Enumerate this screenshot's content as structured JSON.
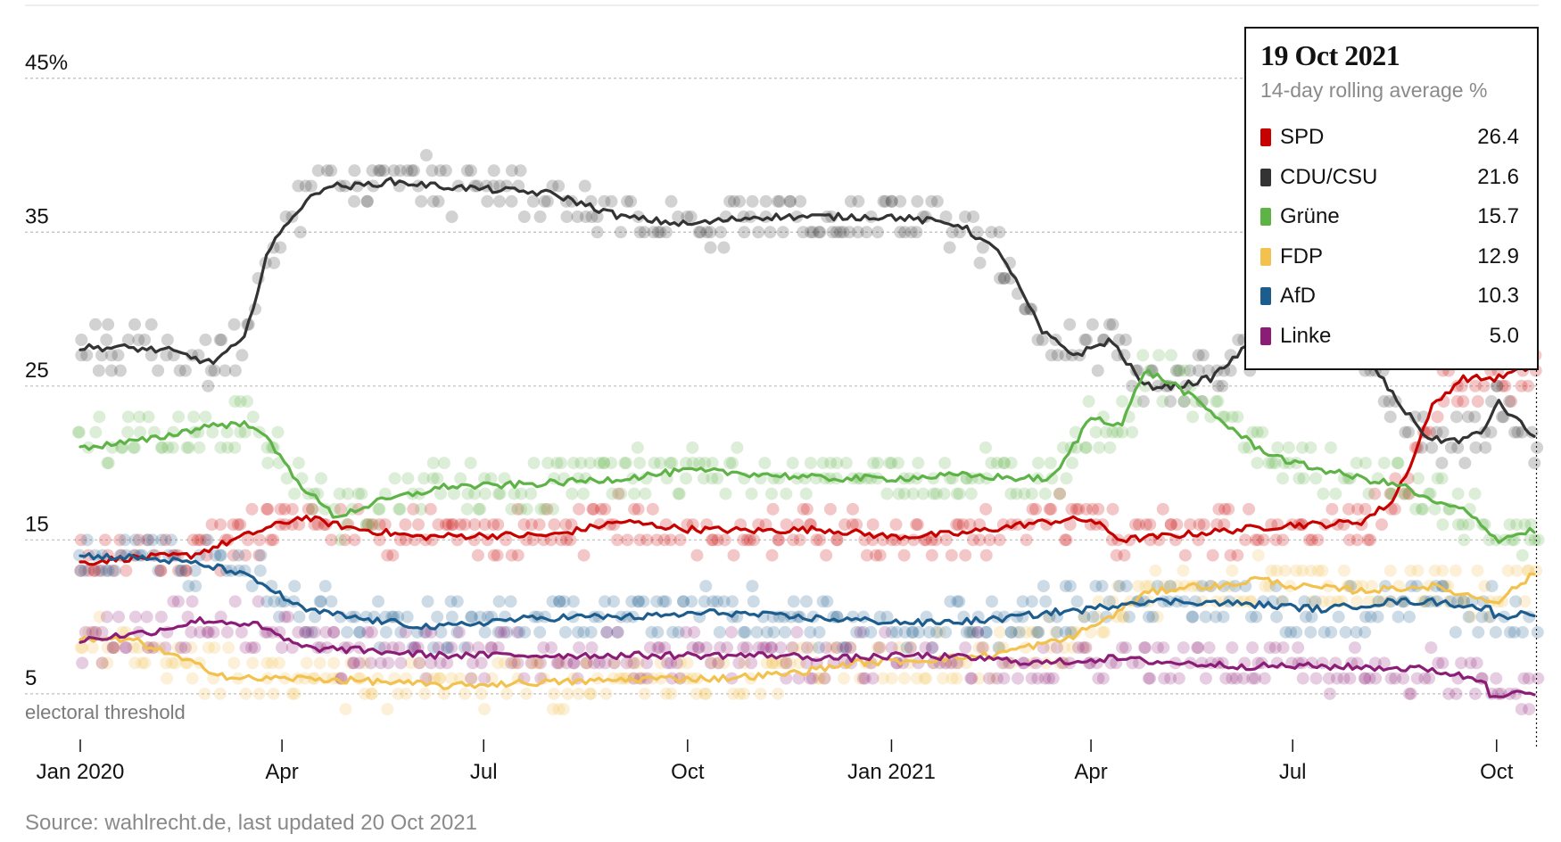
{
  "chart_data": {
    "type": "line",
    "title": "",
    "subtitle": "",
    "xlabel": "",
    "ylabel": "",
    "x_range": [
      "2020-01-01",
      "2021-10-20"
    ],
    "ylim": [
      -1.5,
      48
    ],
    "y_ticks": [
      {
        "value": 45,
        "label": "45%"
      },
      {
        "value": 35,
        "label": "35"
      },
      {
        "value": 25,
        "label": "25"
      },
      {
        "value": 15,
        "label": "15"
      },
      {
        "value": 5,
        "label": "5"
      }
    ],
    "x_ticks": [
      {
        "date": "2020-01-01",
        "label": "Jan 2020"
      },
      {
        "date": "2020-04-01",
        "label": "Apr"
      },
      {
        "date": "2020-07-01",
        "label": "Jul"
      },
      {
        "date": "2020-10-01",
        "label": "Oct"
      },
      {
        "date": "2021-01-01",
        "label": "Jan 2021"
      },
      {
        "date": "2021-04-01",
        "label": "Apr"
      },
      {
        "date": "2021-07-01",
        "label": "Jul"
      },
      {
        "date": "2021-10-01",
        "label": "Oct"
      }
    ],
    "threshold": {
      "value": 5,
      "label": "electoral threshold"
    },
    "grid": true,
    "marker_date": "2021-10-19",
    "series": [
      {
        "name": "SPD",
        "color": "#c70000",
        "x": [
          "2020-01-01",
          "2020-01-20",
          "2020-02-20",
          "2020-03-20",
          "2020-04-10",
          "2020-05-01",
          "2020-06-01",
          "2020-07-01",
          "2020-08-01",
          "2020-09-01",
          "2020-10-01",
          "2020-11-01",
          "2020-12-01",
          "2021-01-01",
          "2021-02-01",
          "2021-03-01",
          "2021-03-20",
          "2021-04-01",
          "2021-04-15",
          "2021-05-01",
          "2021-06-01",
          "2021-07-01",
          "2021-07-15",
          "2021-08-01",
          "2021-08-15",
          "2021-08-25",
          "2021-09-01",
          "2021-09-15",
          "2021-10-01",
          "2021-10-19"
        ],
        "y": [
          13.5,
          13.8,
          14.0,
          15.5,
          16.5,
          15.8,
          15.2,
          15.3,
          15.3,
          16.2,
          15.7,
          15.6,
          15.7,
          15.2,
          15.4,
          16.0,
          16.3,
          16.3,
          15.0,
          15.2,
          15.6,
          16.0,
          16.0,
          16.2,
          17.5,
          20.5,
          23.5,
          25.5,
          25.5,
          26.4
        ]
      },
      {
        "name": "CDU/CSU",
        "color": "#333333",
        "x": [
          "2020-01-01",
          "2020-01-20",
          "2020-02-10",
          "2020-02-29",
          "2020-03-15",
          "2020-03-25",
          "2020-04-05",
          "2020-04-20",
          "2020-05-05",
          "2020-05-20",
          "2020-06-10",
          "2020-07-01",
          "2020-08-01",
          "2020-09-01",
          "2020-10-01",
          "2020-11-01",
          "2020-12-01",
          "2021-01-01",
          "2021-02-01",
          "2021-02-20",
          "2021-03-10",
          "2021-03-25",
          "2021-04-10",
          "2021-04-25",
          "2021-05-10",
          "2021-05-25",
          "2021-06-10",
          "2021-07-01",
          "2021-07-20",
          "2021-08-05",
          "2021-08-20",
          "2021-09-01",
          "2021-09-15",
          "2021-09-25",
          "2021-10-01",
          "2021-10-19"
        ],
        "y": [
          27.5,
          27.5,
          27.3,
          26.5,
          28.0,
          33.5,
          36.0,
          38.0,
          38.0,
          38.3,
          38.0,
          37.8,
          37.5,
          36.0,
          35.5,
          36.0,
          36.0,
          36.0,
          35.5,
          33.5,
          28.5,
          27.0,
          28.0,
          25.0,
          25.0,
          25.5,
          27.5,
          29.0,
          28.5,
          26.5,
          23.5,
          21.5,
          21.5,
          22.0,
          24.0,
          21.6
        ]
      },
      {
        "name": "Grüne",
        "color": "#5eb347",
        "x": [
          "2020-01-01",
          "2020-02-01",
          "2020-03-01",
          "2020-03-20",
          "2020-04-10",
          "2020-04-25",
          "2020-05-15",
          "2020-06-15",
          "2020-07-01",
          "2020-08-01",
          "2020-09-01",
          "2020-10-01",
          "2020-11-01",
          "2020-12-01",
          "2021-01-01",
          "2021-02-01",
          "2021-03-01",
          "2021-03-15",
          "2021-04-01",
          "2021-04-15",
          "2021-04-25",
          "2021-05-10",
          "2021-06-01",
          "2021-06-15",
          "2021-07-01",
          "2021-08-01",
          "2021-08-20",
          "2021-09-01",
          "2021-09-15",
          "2021-09-25",
          "2021-10-01",
          "2021-10-19"
        ],
        "y": [
          21.0,
          21.5,
          22.5,
          22.5,
          18.5,
          16.5,
          17.5,
          18.5,
          18.5,
          18.7,
          19.0,
          19.5,
          19.3,
          19.0,
          19.0,
          19.2,
          19.0,
          19.0,
          23.0,
          22.5,
          26.0,
          25.0,
          22.5,
          21.0,
          20.0,
          19.0,
          18.5,
          17.5,
          17.0,
          16.0,
          15.0,
          15.7
        ]
      },
      {
        "name": "FDP",
        "color": "#f2c14e",
        "x": [
          "2020-01-01",
          "2020-01-25",
          "2020-02-20",
          "2020-03-10",
          "2020-04-10",
          "2020-05-15",
          "2020-06-15",
          "2020-07-15",
          "2020-08-15",
          "2020-09-15",
          "2020-10-15",
          "2020-11-15",
          "2020-12-15",
          "2021-01-15",
          "2021-02-15",
          "2021-03-01",
          "2021-03-20",
          "2021-04-10",
          "2021-04-25",
          "2021-05-15",
          "2021-06-01",
          "2021-06-15",
          "2021-07-01",
          "2021-08-01",
          "2021-09-01",
          "2021-09-15",
          "2021-10-01",
          "2021-10-19"
        ],
        "y": [
          8.5,
          8.5,
          7.0,
          6.0,
          6.0,
          5.8,
          5.5,
          5.7,
          5.8,
          6.0,
          6.0,
          6.3,
          7.0,
          7.2,
          7.5,
          8.0,
          8.5,
          10.0,
          11.5,
          12.0,
          12.0,
          12.5,
          12.0,
          11.7,
          12.0,
          11.5,
          11.0,
          12.9
        ]
      },
      {
        "name": "AfD",
        "color": "#1d5d8e",
        "x": [
          "2020-01-01",
          "2020-02-01",
          "2020-02-20",
          "2020-03-10",
          "2020-03-25",
          "2020-04-10",
          "2020-05-10",
          "2020-06-10",
          "2020-07-10",
          "2020-08-10",
          "2020-09-10",
          "2020-10-15",
          "2020-11-15",
          "2020-12-15",
          "2021-01-15",
          "2021-02-15",
          "2021-03-15",
          "2021-04-01",
          "2021-04-20",
          "2021-05-15",
          "2021-06-15",
          "2021-07-15",
          "2021-08-15",
          "2021-09-01",
          "2021-09-15",
          "2021-09-28",
          "2021-10-01",
          "2021-10-19"
        ],
        "y": [
          14.0,
          13.8,
          13.5,
          13.0,
          12.0,
          10.5,
          9.8,
          9.3,
          9.8,
          10.0,
          10.0,
          10.3,
          10.0,
          9.8,
          9.6,
          9.8,
          10.3,
          10.5,
          11.0,
          11.0,
          10.8,
          10.5,
          11.0,
          11.0,
          10.8,
          10.5,
          10.0,
          10.3
        ]
      },
      {
        "name": "Linke",
        "color": "#8b1d77",
        "x": [
          "2020-01-01",
          "2020-02-01",
          "2020-02-25",
          "2020-03-20",
          "2020-04-10",
          "2020-05-10",
          "2020-06-10",
          "2020-07-10",
          "2020-08-10",
          "2020-09-10",
          "2020-10-10",
          "2020-11-10",
          "2020-12-10",
          "2021-01-10",
          "2021-02-10",
          "2021-03-10",
          "2021-04-10",
          "2021-05-10",
          "2021-06-10",
          "2021-07-10",
          "2021-08-10",
          "2021-09-01",
          "2021-09-20",
          "2021-09-26",
          "2021-09-28",
          "2021-10-19"
        ],
        "y": [
          8.5,
          9.0,
          9.8,
          9.5,
          8.0,
          7.8,
          7.5,
          7.5,
          7.5,
          7.5,
          7.5,
          7.5,
          7.3,
          7.5,
          7.3,
          7.0,
          7.3,
          7.0,
          6.8,
          6.8,
          6.7,
          6.6,
          6.0,
          5.8,
          5.0,
          5.0
        ]
      }
    ]
  },
  "legend": {
    "date": "19 Oct 2021",
    "subtitle": "14-day rolling average %",
    "items": [
      {
        "name": "SPD",
        "value": "26.4",
        "color": "#c70000"
      },
      {
        "name": "CDU/CSU",
        "value": "21.6",
        "color": "#333333"
      },
      {
        "name": "Grüne",
        "value": "15.7",
        "color": "#5eb347"
      },
      {
        "name": "FDP",
        "value": "12.9",
        "color": "#f2c14e"
      },
      {
        "name": "AfD",
        "value": "10.3",
        "color": "#1d5d8e"
      },
      {
        "name": "Linke",
        "value": "5.0",
        "color": "#8b1d77"
      }
    ]
  },
  "source": "Source: wahlrecht.de, last updated 20 Oct 2021"
}
